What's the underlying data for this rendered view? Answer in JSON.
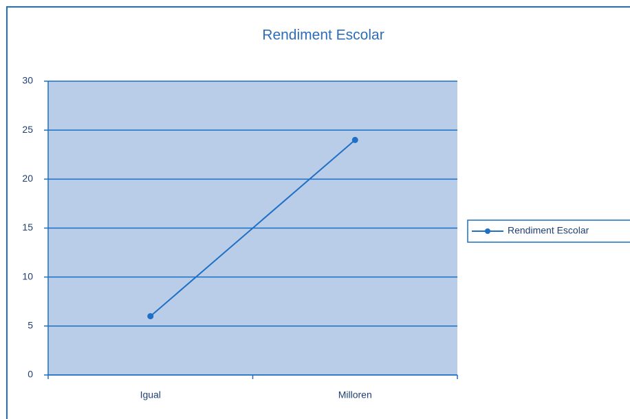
{
  "chart_data": {
    "type": "line",
    "title": "Rendiment Escolar",
    "categories": [
      "Igual",
      "Milloren"
    ],
    "series": [
      {
        "name": "Rendiment Escolar",
        "color": "#1f6fc5",
        "values": [
          6,
          24
        ]
      }
    ],
    "ylim": [
      0,
      30
    ],
    "yticks": [
      0,
      5,
      10,
      15,
      20,
      25,
      30
    ],
    "grid": true,
    "legend": "right",
    "plot_background": "#b9cde9"
  }
}
